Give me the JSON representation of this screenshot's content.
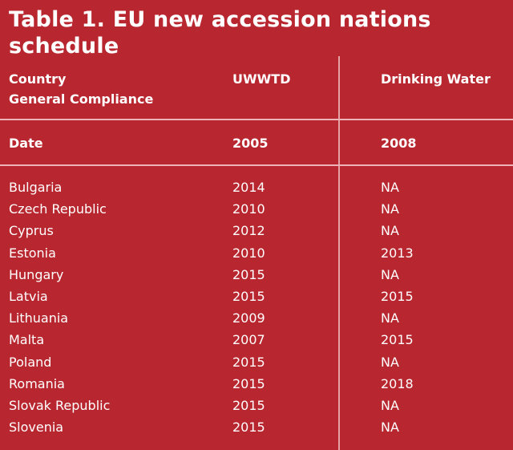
{
  "title": "Table 1. EU new accession nations schedule",
  "header": {
    "col1_line1": "Country",
    "col1_line2": "General Compliance",
    "col2": "UWWTD",
    "col3": "Drinking Water"
  },
  "date_row": {
    "label": "Date",
    "uwwtd": "2005",
    "drinking_water": "2008"
  },
  "rows": [
    {
      "country": "Bulgaria",
      "uwwtd": "2014",
      "drinking_water": "NA"
    },
    {
      "country": "Czech Republic",
      "uwwtd": "2010",
      "drinking_water": "NA"
    },
    {
      "country": "Cyprus",
      "uwwtd": "2012",
      "drinking_water": "NA"
    },
    {
      "country": "Estonia",
      "uwwtd": "2010",
      "drinking_water": "2013"
    },
    {
      "country": "Hungary",
      "uwwtd": "2015",
      "drinking_water": "NA"
    },
    {
      "country": "Latvia",
      "uwwtd": "2015",
      "drinking_water": "2015"
    },
    {
      "country": "Lithuania",
      "uwwtd": "2009",
      "drinking_water": "NA"
    },
    {
      "country": "Malta",
      "uwwtd": "2007",
      "drinking_water": "2015"
    },
    {
      "country": "Poland",
      "uwwtd": "2015",
      "drinking_water": "NA"
    },
    {
      "country": "Romania",
      "uwwtd": "2015",
      "drinking_water": "2018"
    },
    {
      "country": "Slovak Republic",
      "uwwtd": "2015",
      "drinking_water": "NA"
    },
    {
      "country": "Slovenia",
      "uwwtd": "2015",
      "drinking_water": "NA"
    }
  ],
  "colors": {
    "background": "#b8272f",
    "text": "#ffffff",
    "rule": "#ecb4b7"
  }
}
